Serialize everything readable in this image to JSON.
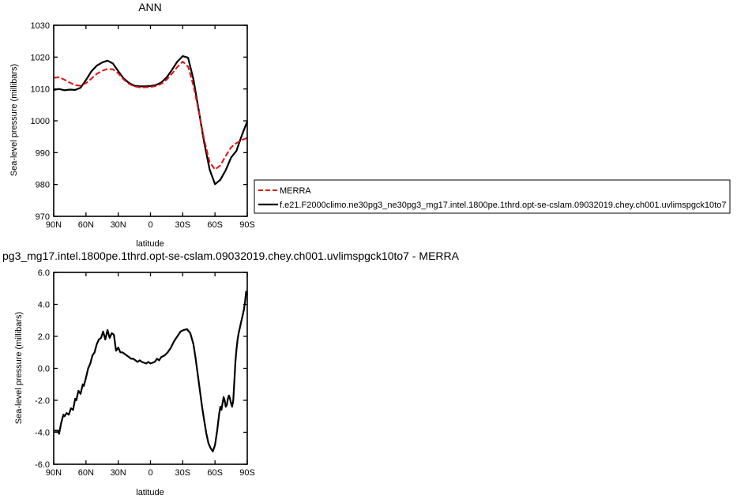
{
  "chart_data": [
    {
      "type": "line",
      "title": "ANN",
      "xlabel": "latitude",
      "ylabel": "Sea-level pressure (millibars)",
      "xlim": [
        90,
        -90
      ],
      "ylim": [
        970,
        1030
      ],
      "x_tick_values": [
        90,
        60,
        30,
        0,
        -30,
        -60,
        -90
      ],
      "x_tick_labels": [
        "90N",
        "60N",
        "30N",
        "0",
        "30S",
        "60S",
        "90S"
      ],
      "y_tick_values": [
        970,
        980,
        990,
        1000,
        1010,
        1020,
        1030
      ],
      "y_tick_labels": [
        "970",
        "980",
        "990",
        "1000",
        "1010",
        "1020",
        "1030"
      ],
      "legend_position": "right",
      "series": [
        {
          "name": "MERRA",
          "color": "#e01010",
          "dash": "dashed",
          "x": [
            90,
            85,
            80,
            75,
            70,
            65,
            60,
            55,
            50,
            45,
            40,
            35,
            30,
            25,
            20,
            15,
            10,
            5,
            0,
            -5,
            -10,
            -15,
            -20,
            -25,
            -30,
            -35,
            -40,
            -45,
            -50,
            -55,
            -60,
            -65,
            -70,
            -75,
            -80,
            -85,
            -90
          ],
          "y": [
            1013.5,
            1013.7,
            1012.9,
            1012.0,
            1011.2,
            1011.0,
            1011.8,
            1013.2,
            1014.7,
            1015.7,
            1016.3,
            1016.2,
            1014.9,
            1013.0,
            1011.6,
            1010.8,
            1010.5,
            1010.5,
            1010.6,
            1010.9,
            1011.6,
            1012.9,
            1014.8,
            1016.9,
            1018.6,
            1017.0,
            1011.0,
            1002.8,
            994.0,
            987.0,
            984.7,
            986.0,
            989.0,
            991.7,
            993.0,
            994.0,
            994.6
          ]
        },
        {
          "name": "f.e21.F2000climo.ne30pg3_ne30pg3_mg17.intel.1800pe.1thrd.opt-se-cslam.09032019.chey.ch001.uvlimspgck10to7",
          "color": "#000000",
          "dash": "solid",
          "x": [
            90,
            85,
            80,
            75,
            70,
            65,
            60,
            55,
            50,
            45,
            40,
            35,
            30,
            25,
            20,
            15,
            10,
            5,
            0,
            -5,
            -10,
            -15,
            -20,
            -25,
            -30,
            -35,
            -40,
            -45,
            -50,
            -55,
            -60,
            -65,
            -70,
            -75,
            -80,
            -85,
            -90
          ],
          "y": [
            1009.7,
            1010.0,
            1009.6,
            1009.8,
            1009.7,
            1010.4,
            1012.8,
            1015.5,
            1017.3,
            1018.3,
            1018.9,
            1018.0,
            1015.6,
            1013.3,
            1011.9,
            1011.0,
            1010.8,
            1010.8,
            1010.9,
            1011.2,
            1012.0,
            1013.6,
            1016.0,
            1018.6,
            1020.3,
            1019.8,
            1013.0,
            1003.0,
            993.0,
            984.7,
            980.1,
            981.5,
            984.5,
            988.5,
            990.6,
            995.5,
            999.8
          ]
        }
      ]
    },
    {
      "type": "line",
      "title": "pg3_mg17.intel.1800pe.1thrd.opt-se-cslam.09032019.chey.ch001.uvlimspgck10to7 - MERRA",
      "xlabel": "latitude",
      "ylabel": "Sea-level pressure (millibars)",
      "xlim": [
        90,
        -90
      ],
      "ylim": [
        -6,
        6
      ],
      "x_tick_values": [
        90,
        60,
        30,
        0,
        -30,
        -60,
        -90
      ],
      "x_tick_labels": [
        "90N",
        "60N",
        "30N",
        "0",
        "30S",
        "60S",
        "90S"
      ],
      "y_tick_values": [
        -6,
        -4,
        -2,
        0,
        2,
        4,
        6
      ],
      "y_tick_labels": [
        "-6.0",
        "-4.0",
        "-2.0",
        "0.0",
        "2.0",
        "4.0",
        "6.0"
      ],
      "series": [
        {
          "color": "#000000",
          "dash": "solid",
          "x": [
            90,
            86,
            85,
            83,
            81,
            80,
            78,
            76,
            74,
            72,
            70,
            69,
            67,
            65,
            63,
            62,
            60,
            58,
            56,
            54,
            52,
            50,
            48,
            46,
            44,
            42,
            40,
            38,
            36,
            34,
            32,
            30,
            28,
            26,
            24,
            22,
            20,
            18,
            16,
            14,
            12,
            10,
            8,
            6,
            4,
            2,
            0,
            -2,
            -4,
            -6,
            -8,
            -10,
            -13,
            -16,
            -19,
            -22,
            -25,
            -28,
            -31,
            -34,
            -37,
            -40,
            -42,
            -44,
            -46,
            -48,
            -50,
            -52,
            -54,
            -56,
            -58,
            -60,
            -62,
            -64,
            -65,
            -66,
            -67,
            -68,
            -69,
            -70,
            -71,
            -72,
            -73,
            -74,
            -75,
            -76,
            -77,
            -78,
            -79,
            -80,
            -81,
            -82,
            -83,
            -84,
            -85,
            -86,
            -87,
            -88,
            -89,
            -90
          ],
          "y": [
            -3.9,
            -3.9,
            -4.1,
            -3.4,
            -2.9,
            -3.0,
            -2.8,
            -2.9,
            -2.5,
            -2.6,
            -1.9,
            -2.0,
            -1.4,
            -1.6,
            -1.0,
            -1.1,
            -0.6,
            0.0,
            0.3,
            0.8,
            1.0,
            1.5,
            1.8,
            1.9,
            2.3,
            1.8,
            2.4,
            1.9,
            2.2,
            2.1,
            1.1,
            1.3,
            1.0,
            1.0,
            0.9,
            0.8,
            0.7,
            0.6,
            0.6,
            0.5,
            0.4,
            0.5,
            0.4,
            0.35,
            0.3,
            0.4,
            0.3,
            0.35,
            0.4,
            0.6,
            0.5,
            0.7,
            0.8,
            1.0,
            1.3,
            1.7,
            2.0,
            2.3,
            2.4,
            2.45,
            2.2,
            1.5,
            0.6,
            -0.4,
            -1.4,
            -2.4,
            -3.3,
            -4.1,
            -4.7,
            -5.0,
            -5.2,
            -4.8,
            -3.9,
            -2.8,
            -2.4,
            -2.6,
            -2.2,
            -1.8,
            -2.0,
            -2.4,
            -2.3,
            -1.9,
            -1.7,
            -1.9,
            -2.2,
            -2.4,
            -2.0,
            -0.8,
            0.4,
            1.2,
            1.8,
            2.2,
            2.5,
            2.8,
            3.1,
            3.4,
            3.7,
            4.2,
            4.8,
            4.6
          ]
        }
      ]
    }
  ]
}
